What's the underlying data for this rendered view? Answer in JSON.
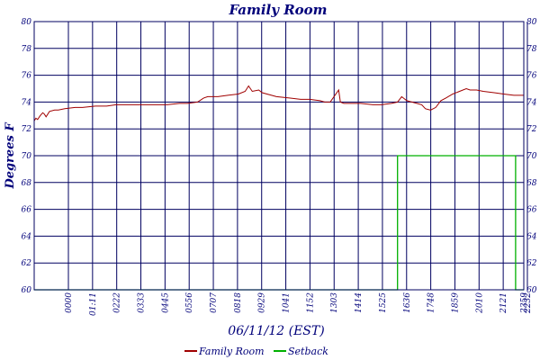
{
  "chart_data": {
    "type": "line",
    "title": "Family Room",
    "xlabel": "06/11/12 (EST)",
    "ylabel": "Degrees F",
    "ylim": [
      60,
      80
    ],
    "y_ticks": [
      "60",
      "62",
      "64",
      "66",
      "68",
      "70",
      "72",
      "74",
      "76",
      "78",
      "80"
    ],
    "x_ticks": [
      "0000",
      "01:11",
      "0222",
      "0333",
      "0445",
      "0556",
      "0707",
      "0818",
      "0929",
      "1041",
      "1152",
      "1303",
      "1414",
      "1525",
      "1636",
      "1748",
      "1859",
      "2010",
      "2121",
      "2232",
      "2343",
      "2359"
    ],
    "grid": true,
    "legend_position": "bottom",
    "series": [
      {
        "name": "Family Room",
        "color": "#a00000",
        "x": [
          "00:00",
          "00:05",
          "00:10",
          "00:18",
          "00:25",
          "00:30",
          "00:35",
          "00:45",
          "01:00",
          "01:11",
          "01:30",
          "02:00",
          "02:22",
          "03:00",
          "03:33",
          "04:00",
          "04:45",
          "05:30",
          "05:56",
          "06:30",
          "07:07",
          "07:30",
          "08:00",
          "08:18",
          "08:30",
          "09:00",
          "09:29",
          "10:00",
          "10:20",
          "10:30",
          "10:41",
          "11:00",
          "11:10",
          "11:52",
          "12:30",
          "13:03",
          "13:30",
          "14:00",
          "14:14",
          "14:30",
          "14:55",
          "15:00",
          "15:10",
          "15:25",
          "16:00",
          "16:36",
          "17:00",
          "17:30",
          "17:48",
          "18:00",
          "18:15",
          "18:30",
          "18:45",
          "18:59",
          "19:10",
          "19:25",
          "19:40",
          "19:55",
          "20:10",
          "20:30",
          "20:50",
          "21:10",
          "21:21",
          "21:40",
          "22:00",
          "22:32",
          "23:00",
          "23:30",
          "23:59"
        ],
        "values": [
          72.6,
          72.8,
          72.7,
          73.0,
          73.2,
          73.1,
          72.9,
          73.3,
          73.4,
          73.4,
          73.5,
          73.6,
          73.6,
          73.7,
          73.7,
          73.8,
          73.8,
          73.8,
          73.8,
          73.8,
          73.9,
          73.9,
          74.0,
          74.3,
          74.4,
          74.4,
          74.5,
          74.6,
          74.8,
          75.2,
          74.8,
          74.9,
          74.7,
          74.4,
          74.3,
          74.2,
          74.2,
          74.1,
          74.0,
          74.0,
          74.9,
          74.0,
          73.9,
          73.9,
          73.9,
          73.8,
          73.8,
          73.9,
          74.0,
          74.4,
          74.1,
          74.0,
          73.9,
          73.8,
          73.5,
          73.4,
          73.6,
          74.1,
          74.3,
          74.6,
          74.8,
          75.0,
          74.9,
          74.9,
          74.8,
          74.7,
          74.6,
          74.5,
          74.5
        ]
      },
      {
        "name": "Setback",
        "color": "#00b000",
        "x": [
          "00:00",
          "17:48",
          "17:48",
          "23:35",
          "23:35",
          "23:59"
        ],
        "values": [
          60,
          60,
          70,
          70,
          60,
          60
        ]
      }
    ]
  }
}
